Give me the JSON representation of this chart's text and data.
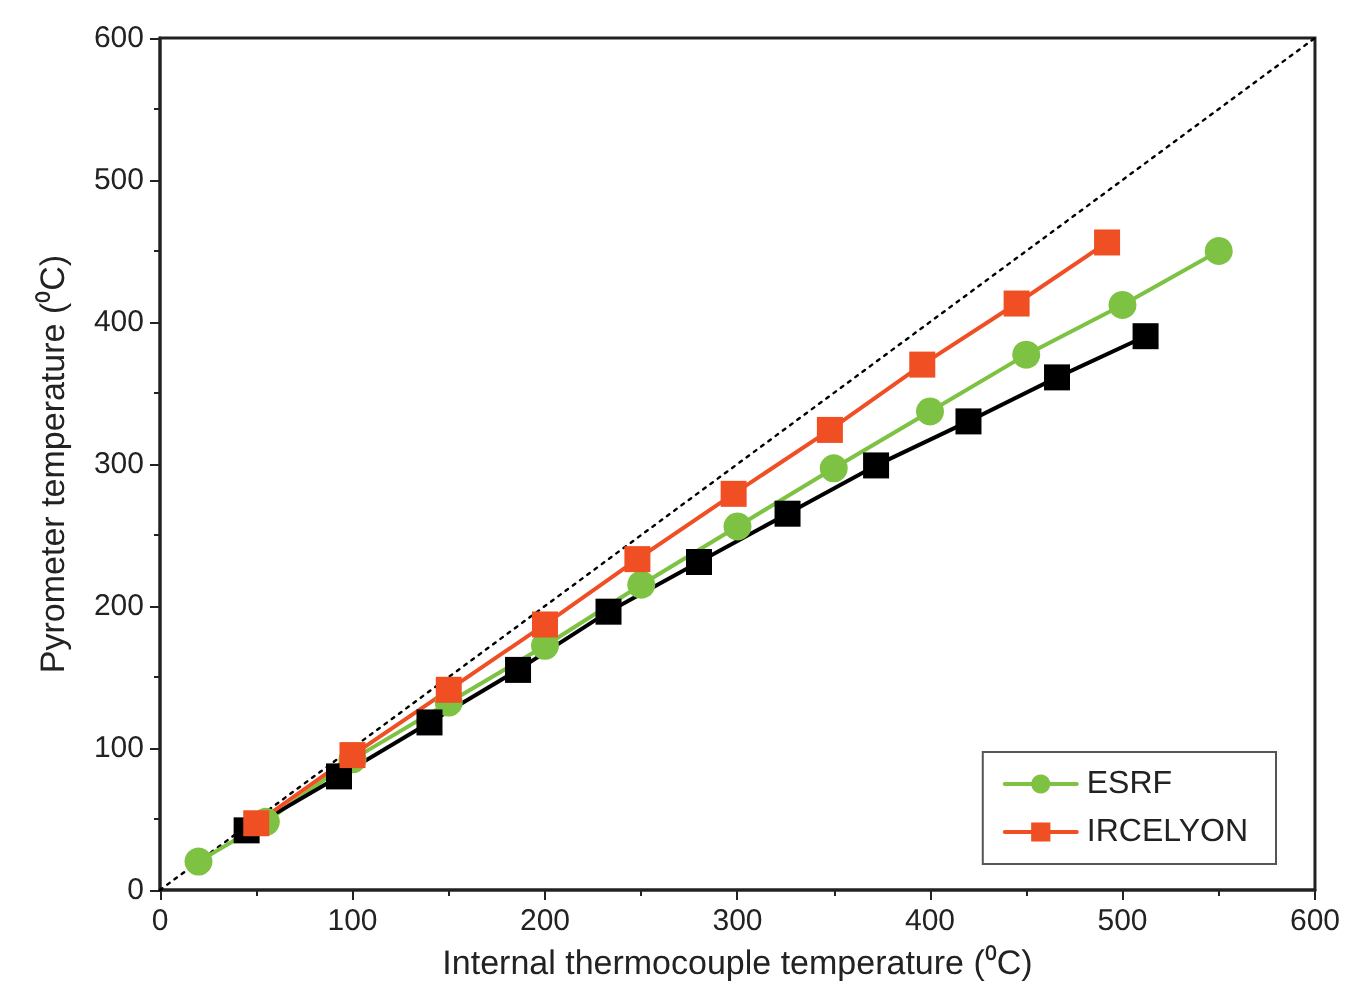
{
  "chart_data": {
    "type": "line",
    "xlabel": "Internal thermocouple temperature (⁰C)",
    "ylabel": "Pyrometer temperature (⁰C)",
    "xlim": [
      0,
      600
    ],
    "xticks": [
      0,
      100,
      200,
      300,
      400,
      500,
      600
    ],
    "ylim": [
      0,
      600
    ],
    "yticks": [
      0,
      100,
      200,
      300,
      400,
      500,
      600
    ],
    "grid": false,
    "legend": "bottom right",
    "line_style": "solid",
    "series": [
      {
        "name": "ESRF",
        "color": "#7dc243",
        "marker": "circle",
        "x": [
          20,
          55,
          100,
          150,
          200,
          250,
          300,
          350,
          400,
          450,
          500,
          550
        ],
        "values": [
          20,
          48,
          92,
          132,
          172,
          215,
          256,
          297,
          337,
          377,
          412,
          450
        ]
      },
      {
        "color": "#000000",
        "marker": "square",
        "x": [
          45,
          93,
          140,
          186,
          233,
          280,
          326,
          372,
          420,
          466,
          512
        ],
        "values": [
          42,
          80,
          118,
          155,
          196,
          231,
          265,
          299,
          330,
          361,
          390
        ]
      },
      {
        "name": "IRCELYON",
        "color": "#f04e23",
        "marker": "square",
        "x": [
          50,
          100,
          150,
          200,
          248,
          298,
          348,
          396,
          445,
          492
        ],
        "values": [
          47,
          95,
          141,
          187,
          233,
          279,
          324,
          370,
          413,
          456
        ]
      },
      {
        "color": "#000000",
        "marker": "none",
        "line_style": "dotted",
        "x": [
          0,
          600
        ],
        "values": [
          0,
          600
        ]
      }
    ]
  }
}
